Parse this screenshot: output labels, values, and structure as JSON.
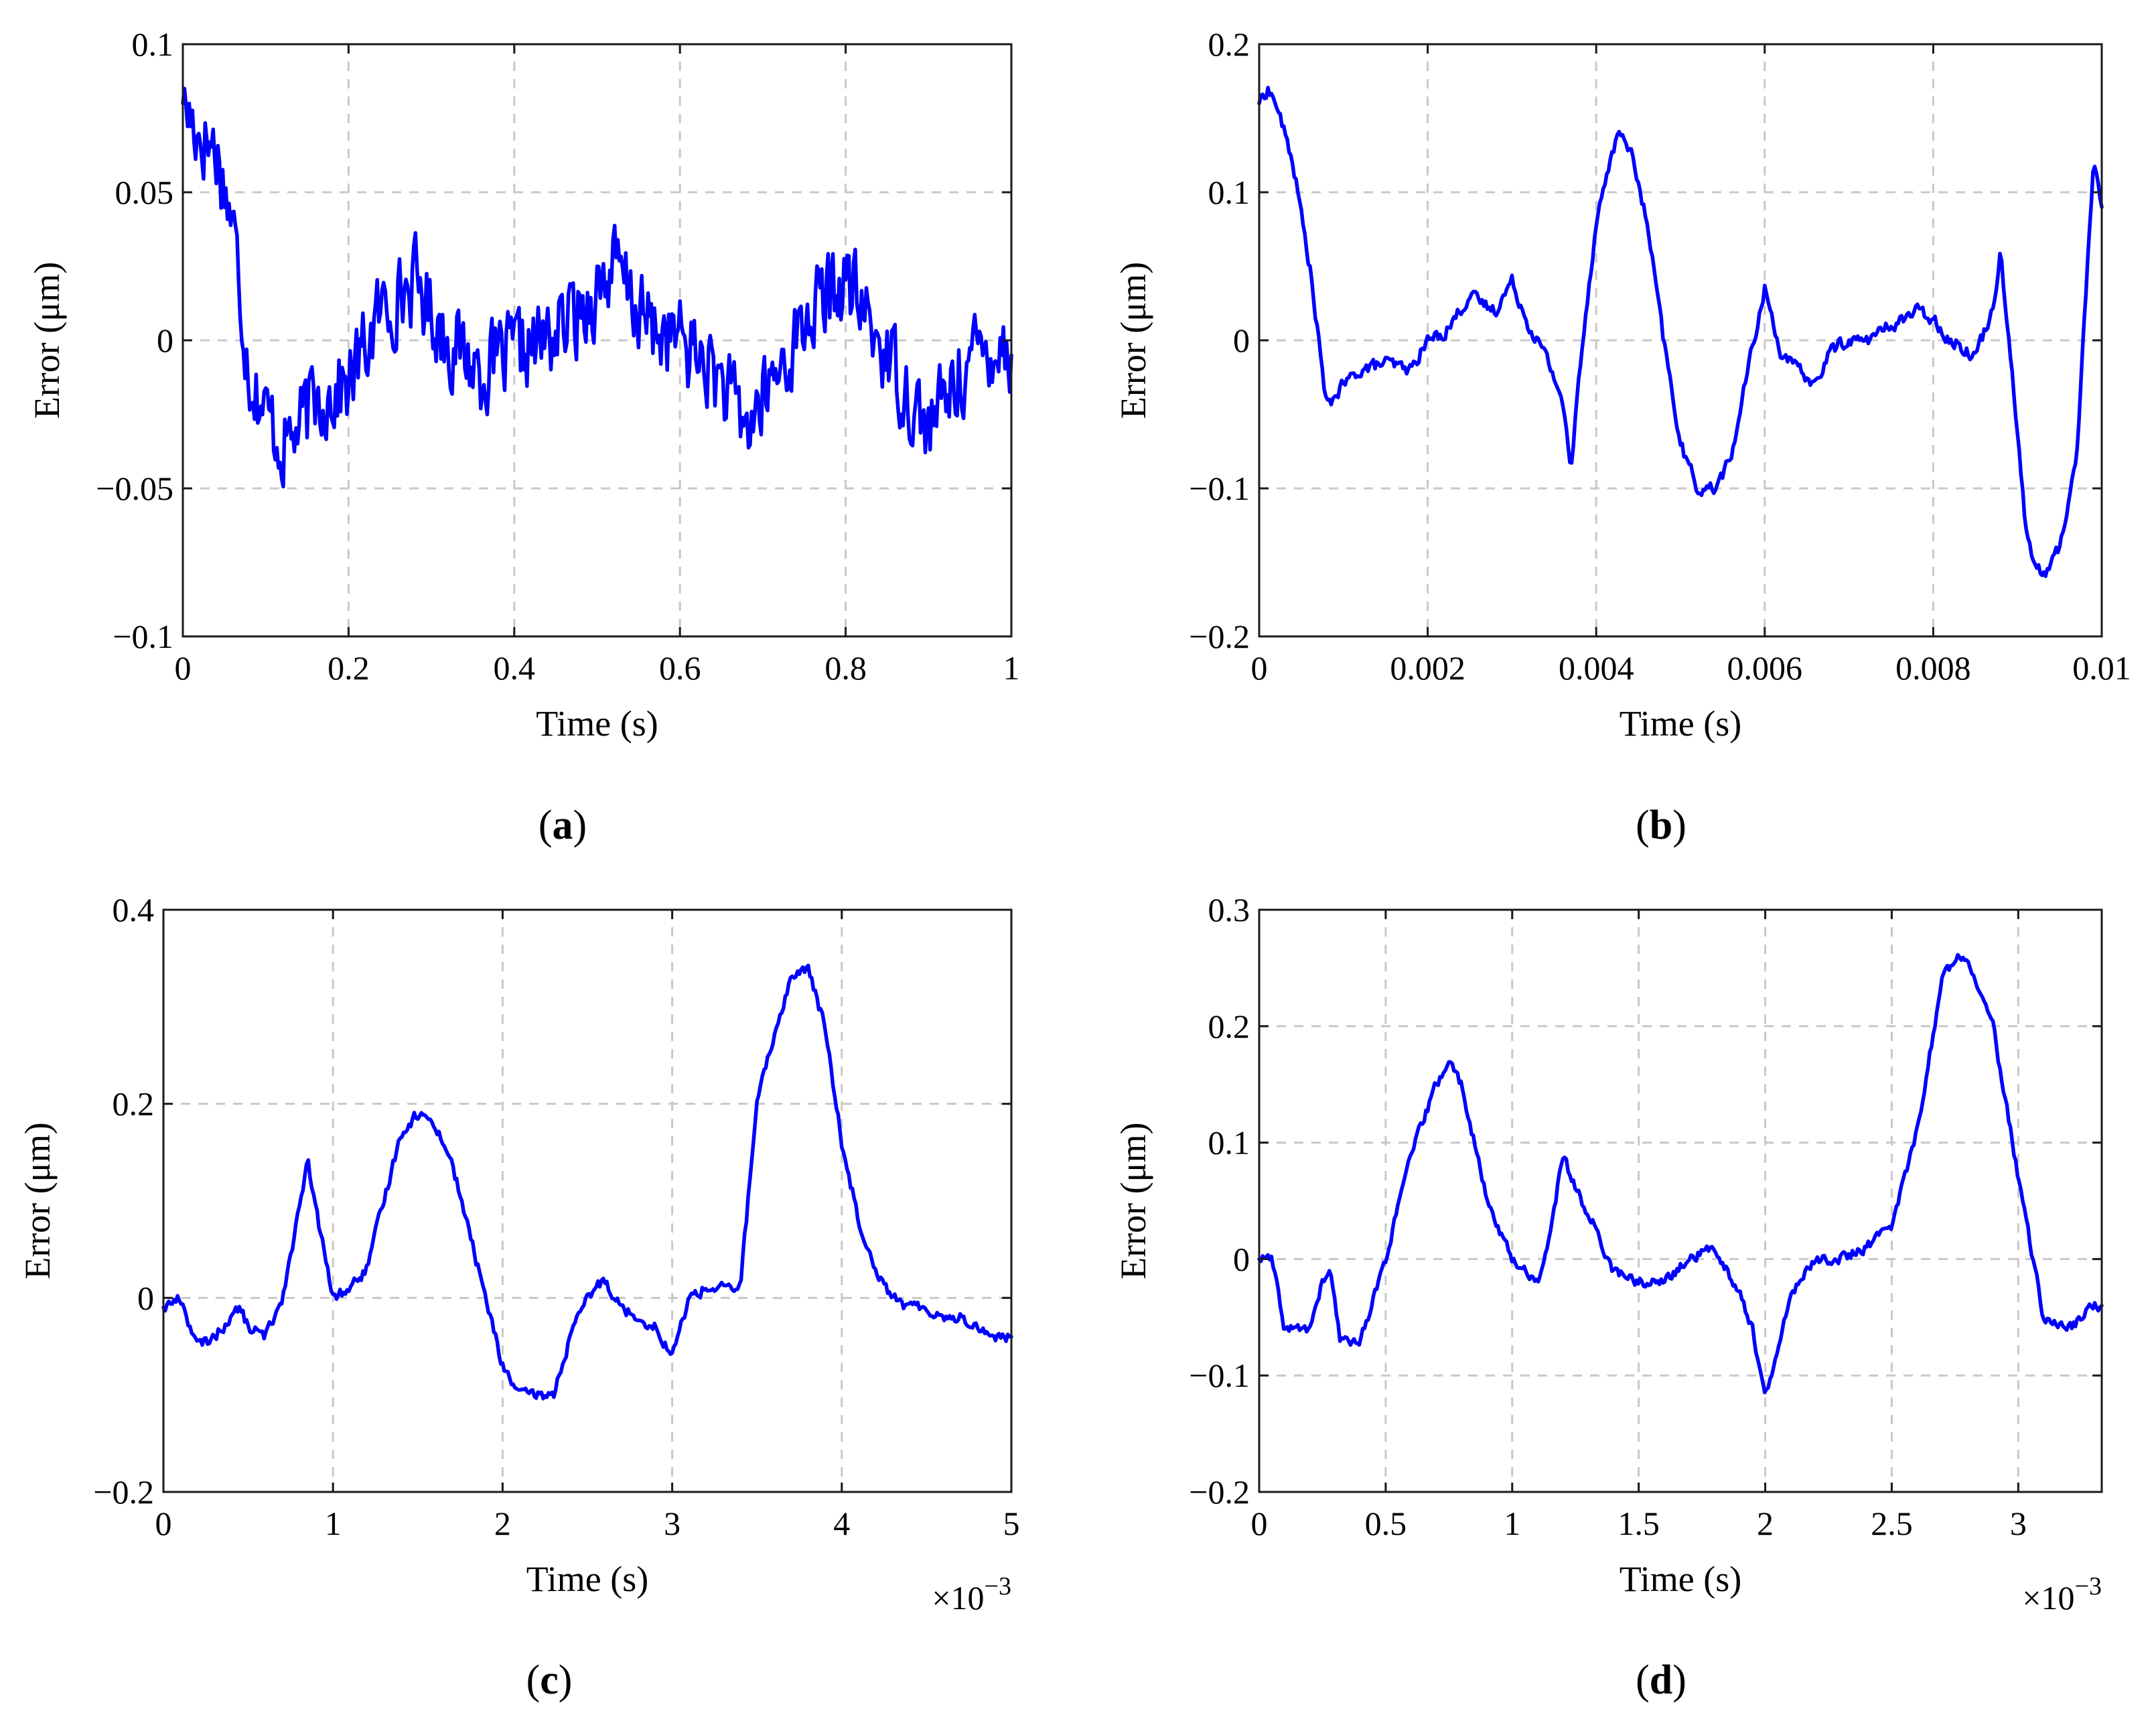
{
  "figure": {
    "colors": {
      "series": "#0000ff",
      "grid": "#c8c8c8",
      "frame": "#1a1a1a",
      "background": "#ffffff"
    }
  },
  "chart_data": [
    {
      "id": "a",
      "type": "line",
      "panel_label": "a",
      "xlabel": "Time (s)",
      "ylabel": "Error (μm)",
      "xlim": [
        0,
        1
      ],
      "ylim": [
        -0.1,
        0.1
      ],
      "grid": true,
      "x_multiplier": "",
      "x_ticks": [
        0,
        0.2,
        0.4,
        0.6,
        0.8,
        1
      ],
      "x_tick_labels": [
        "0",
        "0.2",
        "0.4",
        "0.6",
        "0.8",
        "1"
      ],
      "y_ticks": [
        -0.1,
        -0.05,
        0,
        0.05,
        0.1
      ],
      "y_tick_labels": [
        "−0.1",
        "−0.05",
        "0",
        "0.05",
        "0.1"
      ],
      "noise_amplitude": 0.02,
      "series": [
        {
          "name": "Error",
          "x": [
            0,
            0.02,
            0.04,
            0.06,
            0.08,
            0.1,
            0.12,
            0.14,
            0.16,
            0.2,
            0.24,
            0.28,
            0.32,
            0.36,
            0.4,
            0.44,
            0.48,
            0.52,
            0.56,
            0.6,
            0.64,
            0.68,
            0.72,
            0.76,
            0.8,
            0.84,
            0.88,
            0.9,
            0.94,
            0.98,
            1
          ],
          "y": [
            0.08,
            0.07,
            0.065,
            0.04,
            -0.01,
            -0.025,
            -0.035,
            -0.03,
            -0.02,
            -0.015,
            0.01,
            0.02,
            0.0,
            -0.01,
            -0.005,
            0.0,
            0.01,
            0.025,
            0.005,
            0.0,
            -0.01,
            -0.03,
            -0.01,
            0.01,
            0.02,
            0.0,
            -0.02,
            -0.03,
            -0.01,
            0.0,
            -0.005
          ]
        }
      ]
    },
    {
      "id": "b",
      "type": "line",
      "panel_label": "b",
      "xlabel": "Time (s)",
      "ylabel": "Error (μm)",
      "xlim": [
        0,
        0.01
      ],
      "ylim": [
        -0.2,
        0.2
      ],
      "grid": true,
      "x_multiplier": "",
      "x_ticks": [
        0,
        0.002,
        0.004,
        0.006,
        0.008,
        0.01
      ],
      "x_tick_labels": [
        "0",
        "0.002",
        "0.004",
        "0.006",
        "0.008",
        "0.01"
      ],
      "y_ticks": [
        -0.2,
        -0.1,
        0,
        0.1,
        0.2
      ],
      "y_tick_labels": [
        "−0.2",
        "−0.1",
        "0",
        "0.1",
        "0.2"
      ],
      "noise_amplitude": 0.006,
      "series": [
        {
          "name": "Error",
          "x": [
            0,
            0.0001,
            0.0002,
            0.0004,
            0.0006,
            0.0008,
            0.001,
            0.0012,
            0.0015,
            0.0018,
            0.002,
            0.0022,
            0.0025,
            0.0028,
            0.003,
            0.0032,
            0.0034,
            0.0036,
            0.0037,
            0.0038,
            0.004,
            0.0042,
            0.0043,
            0.0044,
            0.0046,
            0.0048,
            0.005,
            0.0052,
            0.0054,
            0.0056,
            0.0058,
            0.006,
            0.0062,
            0.0064,
            0.0066,
            0.0068,
            0.007,
            0.0072,
            0.0075,
            0.0078,
            0.008,
            0.0082,
            0.0085,
            0.0087,
            0.0088,
            0.009,
            0.0091,
            0.0092,
            0.0093,
            0.0095,
            0.0097,
            0.0098,
            0.0099,
            0.01
          ],
          "y": [
            0.16,
            0.17,
            0.16,
            0.12,
            0.05,
            -0.045,
            -0.03,
            -0.02,
            -0.015,
            -0.02,
            0.0,
            0.005,
            0.03,
            0.02,
            0.04,
            0.01,
            -0.01,
            -0.04,
            -0.09,
            -0.02,
            0.08,
            0.13,
            0.14,
            0.13,
            0.08,
            0.0,
            -0.07,
            -0.1,
            -0.1,
            -0.08,
            -0.02,
            0.035,
            -0.01,
            -0.02,
            -0.03,
            -0.005,
            0.0,
            0.0,
            0.01,
            0.02,
            0.015,
            0.0,
            -0.01,
            0.02,
            0.06,
            -0.06,
            -0.13,
            -0.15,
            -0.16,
            -0.14,
            -0.08,
            0.02,
            0.12,
            0.09
          ]
        }
      ]
    },
    {
      "id": "c",
      "type": "line",
      "panel_label": "c",
      "xlabel": "Time (s)",
      "ylabel": "Error (μm)",
      "xlim": [
        0,
        5
      ],
      "ylim": [
        -0.2,
        0.4
      ],
      "grid": true,
      "x_multiplier": "×10",
      "x_multiplier_exponent": "−3",
      "x_ticks": [
        0,
        1,
        2,
        3,
        4,
        5
      ],
      "x_tick_labels": [
        "0",
        "1",
        "2",
        "3",
        "4",
        "5"
      ],
      "y_ticks": [
        -0.2,
        0,
        0.2,
        0.4
      ],
      "y_tick_labels": [
        "−0.2",
        "0",
        "0.2",
        "0.4"
      ],
      "noise_amplitude": 0.008,
      "series": [
        {
          "name": "Error",
          "x": [
            0,
            0.1,
            0.2,
            0.3,
            0.4,
            0.45,
            0.5,
            0.6,
            0.7,
            0.8,
            0.85,
            0.9,
            1.0,
            1.1,
            1.2,
            1.3,
            1.4,
            1.5,
            1.6,
            1.7,
            1.8,
            1.9,
            2.0,
            2.1,
            2.2,
            2.3,
            2.4,
            2.5,
            2.6,
            2.7,
            2.8,
            2.9,
            3.0,
            3.1,
            3.2,
            3.3,
            3.4,
            3.5,
            3.6,
            3.7,
            3.8,
            3.9,
            4.0,
            4.1,
            4.2,
            4.3,
            4.4,
            4.5,
            4.6,
            4.7,
            4.8,
            4.9,
            5.0
          ],
          "y": [
            -0.01,
            0.0,
            -0.05,
            -0.04,
            -0.02,
            -0.01,
            -0.03,
            -0.04,
            0.0,
            0.09,
            0.14,
            0.09,
            0.0,
            0.01,
            0.03,
            0.1,
            0.17,
            0.19,
            0.18,
            0.14,
            0.07,
            0.0,
            -0.07,
            -0.1,
            -0.1,
            -0.1,
            -0.04,
            0.0,
            0.02,
            -0.01,
            -0.02,
            -0.03,
            -0.06,
            0.0,
            0.01,
            0.01,
            0.01,
            0.2,
            0.27,
            0.33,
            0.34,
            0.28,
            0.16,
            0.08,
            0.03,
            0.0,
            -0.01,
            -0.01,
            -0.02,
            -0.02,
            -0.03,
            -0.04,
            -0.04
          ]
        }
      ]
    },
    {
      "id": "d",
      "type": "line",
      "panel_label": "d",
      "xlabel": "Time (s)",
      "ylabel": "Error (μm)",
      "xlim": [
        0,
        3.33
      ],
      "ylim": [
        -0.2,
        0.3
      ],
      "grid": true,
      "x_multiplier": "×10",
      "x_multiplier_exponent": "−3",
      "x_ticks": [
        0,
        0.5,
        1,
        1.5,
        2,
        2.5,
        3
      ],
      "x_tick_labels": [
        "0",
        "0.5",
        "1",
        "1.5",
        "2",
        "2.5",
        "3"
      ],
      "y_ticks": [
        -0.2,
        -0.1,
        0,
        0.1,
        0.2,
        0.3
      ],
      "y_tick_labels": [
        "−0.2",
        "−0.1",
        "0",
        "0.1",
        "0.2",
        "0.3"
      ],
      "noise_amplitude": 0.006,
      "series": [
        {
          "name": "Error",
          "x": [
            0,
            0.05,
            0.1,
            0.2,
            0.25,
            0.28,
            0.32,
            0.4,
            0.5,
            0.6,
            0.7,
            0.75,
            0.8,
            0.9,
            1.0,
            1.1,
            1.15,
            1.2,
            1.25,
            1.3,
            1.4,
            1.5,
            1.6,
            1.7,
            1.8,
            1.9,
            1.95,
            2.0,
            2.05,
            2.1,
            2.2,
            2.3,
            2.4,
            2.5,
            2.6,
            2.7,
            2.75,
            2.8,
            2.9,
            3.0,
            3.1,
            3.2,
            3.3,
            3.33
          ],
          "y": [
            0.0,
            0.0,
            -0.06,
            -0.06,
            -0.02,
            -0.01,
            -0.07,
            -0.07,
            0.0,
            0.09,
            0.15,
            0.17,
            0.15,
            0.05,
            0.0,
            -0.02,
            0.02,
            0.09,
            0.06,
            0.04,
            -0.01,
            -0.02,
            -0.02,
            0.0,
            0.01,
            -0.03,
            -0.06,
            -0.12,
            -0.08,
            -0.03,
            0.0,
            0.0,
            0.01,
            0.03,
            0.11,
            0.24,
            0.26,
            0.26,
            0.2,
            0.07,
            -0.05,
            -0.06,
            -0.04,
            -0.04
          ]
        }
      ]
    }
  ]
}
